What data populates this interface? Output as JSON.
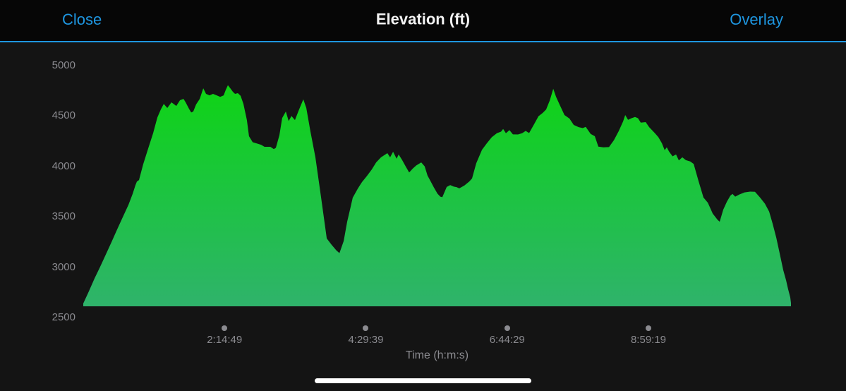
{
  "header": {
    "close_label": "Close",
    "title": "Elevation (ft)",
    "overlay_label": "Overlay"
  },
  "colors": {
    "accent_blue": "#1e96e0",
    "navbar_bg": "#060606",
    "chart_bg": "#141414",
    "gradient_top": "#0ed512",
    "gradient_mid": "#1cc440",
    "gradient_bottom": "#2fb36b",
    "axis_text_gray": "#8b8b90",
    "tick_dot_gray": "#8b8b90",
    "home_indicator": "#ffffff"
  },
  "chart_data": {
    "type": "area",
    "title": "Elevation (ft)",
    "xlabel": "Time (h:m:s)",
    "ylabel": "",
    "grid": false,
    "legend": false,
    "ylim": [
      2500,
      5000
    ],
    "y_ticks": [
      5000,
      4500,
      4000,
      3500,
      3000,
      2500
    ],
    "xlim_seconds": [
      0,
      40520
    ],
    "x_ticks": [
      {
        "seconds": 8089,
        "label": "2:14:49"
      },
      {
        "seconds": 16179,
        "label": "4:29:39"
      },
      {
        "seconds": 24269,
        "label": "6:44:29"
      },
      {
        "seconds": 32359,
        "label": "8:59:19"
      }
    ],
    "baseline_ft": 2612,
    "points": [
      [
        0,
        2640
      ],
      [
        320,
        2760
      ],
      [
        650,
        2890
      ],
      [
        970,
        3005
      ],
      [
        1290,
        3125
      ],
      [
        1620,
        3250
      ],
      [
        1940,
        3375
      ],
      [
        2260,
        3495
      ],
      [
        2590,
        3620
      ],
      [
        2830,
        3730
      ],
      [
        2990,
        3815
      ],
      [
        3070,
        3850
      ],
      [
        3190,
        3865
      ],
      [
        3430,
        4020
      ],
      [
        3720,
        4180
      ],
      [
        4000,
        4330
      ],
      [
        4240,
        4485
      ],
      [
        4440,
        4565
      ],
      [
        4610,
        4620
      ],
      [
        4810,
        4580
      ],
      [
        5050,
        4636
      ],
      [
        5330,
        4600
      ],
      [
        5540,
        4657
      ],
      [
        5740,
        4670
      ],
      [
        5860,
        4636
      ],
      [
        6060,
        4570
      ],
      [
        6180,
        4535
      ],
      [
        6300,
        4545
      ],
      [
        6460,
        4615
      ],
      [
        6670,
        4670
      ],
      [
        6870,
        4775
      ],
      [
        7030,
        4720
      ],
      [
        7230,
        4705
      ],
      [
        7430,
        4720
      ],
      [
        7640,
        4705
      ],
      [
        7840,
        4690
      ],
      [
        8040,
        4705
      ],
      [
        8160,
        4760
      ],
      [
        8280,
        4805
      ],
      [
        8440,
        4770
      ],
      [
        8570,
        4740
      ],
      [
        8690,
        4720
      ],
      [
        8850,
        4727
      ],
      [
        9010,
        4700
      ],
      [
        9170,
        4620
      ],
      [
        9370,
        4460
      ],
      [
        9490,
        4300
      ],
      [
        9700,
        4240
      ],
      [
        9900,
        4230
      ],
      [
        10180,
        4215
      ],
      [
        10380,
        4195
      ],
      [
        10710,
        4195
      ],
      [
        10910,
        4172
      ],
      [
        11030,
        4185
      ],
      [
        11230,
        4310
      ],
      [
        11390,
        4480
      ],
      [
        11600,
        4545
      ],
      [
        11760,
        4450
      ],
      [
        11920,
        4500
      ],
      [
        12120,
        4460
      ],
      [
        12360,
        4565
      ],
      [
        12600,
        4665
      ],
      [
        12770,
        4580
      ],
      [
        13010,
        4345
      ],
      [
        13290,
        4090
      ],
      [
        13610,
        3700
      ],
      [
        13940,
        3285
      ],
      [
        14220,
        3222
      ],
      [
        14500,
        3165
      ],
      [
        14670,
        3140
      ],
      [
        14910,
        3260
      ],
      [
        15110,
        3450
      ],
      [
        15310,
        3600
      ],
      [
        15430,
        3690
      ],
      [
        15720,
        3780
      ],
      [
        15960,
        3845
      ],
      [
        16240,
        3905
      ],
      [
        16520,
        3970
      ],
      [
        16770,
        4040
      ],
      [
        17050,
        4090
      ],
      [
        17410,
        4132
      ],
      [
        17570,
        4090
      ],
      [
        17740,
        4146
      ],
      [
        17940,
        4076
      ],
      [
        18060,
        4118
      ],
      [
        18260,
        4062
      ],
      [
        18460,
        4000
      ],
      [
        18660,
        3940
      ],
      [
        18870,
        3980
      ],
      [
        19070,
        4010
      ],
      [
        19350,
        4040
      ],
      [
        19550,
        4000
      ],
      [
        19710,
        3910
      ],
      [
        19880,
        3855
      ],
      [
        20080,
        3790
      ],
      [
        20280,
        3730
      ],
      [
        20440,
        3700
      ],
      [
        20560,
        3695
      ],
      [
        20810,
        3796
      ],
      [
        21010,
        3815
      ],
      [
        21210,
        3800
      ],
      [
        21370,
        3795
      ],
      [
        21530,
        3782
      ],
      [
        21820,
        3810
      ],
      [
        22100,
        3850
      ],
      [
        22260,
        3880
      ],
      [
        22500,
        4030
      ],
      [
        22830,
        4165
      ],
      [
        23110,
        4230
      ],
      [
        23390,
        4290
      ],
      [
        23680,
        4330
      ],
      [
        23920,
        4345
      ],
      [
        24040,
        4372
      ],
      [
        24200,
        4330
      ],
      [
        24400,
        4360
      ],
      [
        24600,
        4318
      ],
      [
        24890,
        4317
      ],
      [
        25130,
        4330
      ],
      [
        25330,
        4352
      ],
      [
        25530,
        4331
      ],
      [
        25820,
        4420
      ],
      [
        26060,
        4497
      ],
      [
        26300,
        4530
      ],
      [
        26500,
        4565
      ],
      [
        26710,
        4655
      ],
      [
        26910,
        4770
      ],
      [
        27070,
        4690
      ],
      [
        27270,
        4615
      ],
      [
        27550,
        4510
      ],
      [
        27840,
        4475
      ],
      [
        28080,
        4412
      ],
      [
        28360,
        4390
      ],
      [
        28600,
        4380
      ],
      [
        28770,
        4392
      ],
      [
        29050,
        4322
      ],
      [
        29290,
        4300
      ],
      [
        29490,
        4196
      ],
      [
        29780,
        4190
      ],
      [
        30100,
        4192
      ],
      [
        30380,
        4260
      ],
      [
        30660,
        4350
      ],
      [
        30910,
        4447
      ],
      [
        31030,
        4510
      ],
      [
        31190,
        4462
      ],
      [
        31390,
        4478
      ],
      [
        31590,
        4490
      ],
      [
        31760,
        4478
      ],
      [
        31920,
        4435
      ],
      [
        32200,
        4440
      ],
      [
        32400,
        4390
      ],
      [
        32730,
        4330
      ],
      [
        32930,
        4290
      ],
      [
        33130,
        4230
      ],
      [
        33290,
        4162
      ],
      [
        33410,
        4190
      ],
      [
        33530,
        4150
      ],
      [
        33740,
        4100
      ],
      [
        33940,
        4118
      ],
      [
        34100,
        4060
      ],
      [
        34300,
        4090
      ],
      [
        34500,
        4062
      ],
      [
        34750,
        4050
      ],
      [
        34950,
        4025
      ],
      [
        35230,
        3852
      ],
      [
        35510,
        3691
      ],
      [
        35760,
        3640
      ],
      [
        36040,
        3532
      ],
      [
        36320,
        3470
      ],
      [
        36440,
        3452
      ],
      [
        36640,
        3571
      ],
      [
        36850,
        3650
      ],
      [
        37050,
        3710
      ],
      [
        37170,
        3727
      ],
      [
        37330,
        3700
      ],
      [
        37570,
        3722
      ],
      [
        37860,
        3742
      ],
      [
        38180,
        3750
      ],
      [
        38460,
        3748
      ],
      [
        38750,
        3691
      ],
      [
        39030,
        3630
      ],
      [
        39270,
        3551
      ],
      [
        39470,
        3432
      ],
      [
        39680,
        3292
      ],
      [
        39880,
        3131
      ],
      [
        40080,
        2970
      ],
      [
        40240,
        2870
      ],
      [
        40360,
        2781
      ],
      [
        40480,
        2700
      ],
      [
        40520,
        2645
      ]
    ]
  }
}
